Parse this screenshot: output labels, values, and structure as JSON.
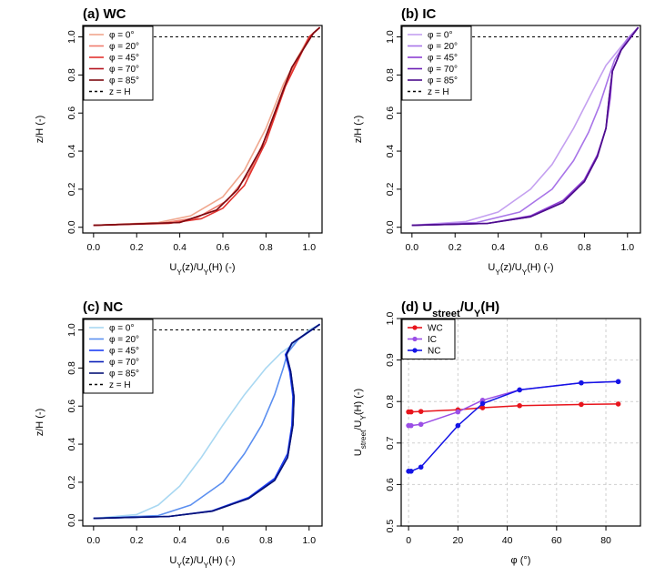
{
  "chart_data": [
    {
      "id": "a",
      "type": "line",
      "title": "(a) WC",
      "xlabel": "U_Y(z)/U_Y(H) (-)",
      "ylabel": "z/H (-)",
      "xlim": [
        -0.05,
        1.06
      ],
      "ylim": [
        -0.03,
        1.06
      ],
      "xticks": [
        "0.0",
        "0.2",
        "0.4",
        "0.6",
        "0.8",
        "1.0"
      ],
      "yticks": [
        "0.0",
        "0.2",
        "0.4",
        "0.6",
        "0.8",
        "1.0"
      ],
      "reference_line": {
        "label": "z = H",
        "y": 1.0
      },
      "legend_position": "top-left",
      "series": [
        {
          "name": "φ = 0°",
          "color": "#f0a78e",
          "points": [
            [
              0,
              0.01
            ],
            [
              0.3,
              0.025
            ],
            [
              0.45,
              0.06
            ],
            [
              0.6,
              0.16
            ],
            [
              0.7,
              0.3
            ],
            [
              0.8,
              0.52
            ],
            [
              0.88,
              0.75
            ],
            [
              0.94,
              0.88
            ],
            [
              1.0,
              1.0
            ],
            [
              1.05,
              1.05
            ]
          ]
        },
        {
          "name": "φ = 20°",
          "color": "#ef7b6d",
          "points": [
            [
              0,
              0.01
            ],
            [
              0.32,
              0.022
            ],
            [
              0.48,
              0.05
            ],
            [
              0.62,
              0.14
            ],
            [
              0.72,
              0.28
            ],
            [
              0.81,
              0.5
            ],
            [
              0.885,
              0.74
            ],
            [
              0.945,
              0.88
            ],
            [
              1.0,
              1.0
            ],
            [
              1.05,
              1.05
            ]
          ]
        },
        {
          "name": "φ = 45°",
          "color": "#e3332f",
          "points": [
            [
              0,
              0.01
            ],
            [
              0.35,
              0.02
            ],
            [
              0.5,
              0.045
            ],
            [
              0.6,
              0.1
            ],
            [
              0.7,
              0.22
            ],
            [
              0.8,
              0.45
            ],
            [
              0.89,
              0.74
            ],
            [
              0.95,
              0.88
            ],
            [
              1.0,
              1.0
            ],
            [
              1.05,
              1.05
            ]
          ]
        },
        {
          "name": "φ = 70°",
          "color": "#b4151f",
          "points": [
            [
              0,
              0.01
            ],
            [
              0.4,
              0.025
            ],
            [
              0.57,
              0.09
            ],
            [
              0.67,
              0.2
            ],
            [
              0.78,
              0.42
            ],
            [
              0.86,
              0.66
            ],
            [
              0.92,
              0.84
            ],
            [
              0.97,
              0.93
            ],
            [
              1.02,
              1.02
            ],
            [
              1.05,
              1.05
            ]
          ]
        },
        {
          "name": "φ = 85°",
          "color": "#7d0b12",
          "points": [
            [
              0,
              0.01
            ],
            [
              0.4,
              0.025
            ],
            [
              0.57,
              0.09
            ],
            [
              0.67,
              0.2
            ],
            [
              0.78,
              0.42
            ],
            [
              0.86,
              0.66
            ],
            [
              0.92,
              0.84
            ],
            [
              0.97,
              0.93
            ],
            [
              1.02,
              1.02
            ],
            [
              1.05,
              1.05
            ]
          ]
        }
      ]
    },
    {
      "id": "b",
      "type": "line",
      "title": "(b) IC",
      "xlabel": "U_Y(z)/U_Y(H) (-)",
      "ylabel": "z/H (-)",
      "xlim": [
        -0.05,
        1.06
      ],
      "ylim": [
        -0.03,
        1.06
      ],
      "xticks": [
        "0.0",
        "0.2",
        "0.4",
        "0.6",
        "0.8",
        "1.0"
      ],
      "yticks": [
        "0.0",
        "0.2",
        "0.4",
        "0.6",
        "0.8",
        "1.0"
      ],
      "reference_line": {
        "label": "z = H",
        "y": 1.0
      },
      "legend_position": "top-left",
      "series": [
        {
          "name": "φ = 0°",
          "color": "#c4a0f0",
          "points": [
            [
              0,
              0.01
            ],
            [
              0.25,
              0.03
            ],
            [
              0.4,
              0.08
            ],
            [
              0.55,
              0.2
            ],
            [
              0.65,
              0.33
            ],
            [
              0.75,
              0.52
            ],
            [
              0.84,
              0.72
            ],
            [
              0.9,
              0.85
            ],
            [
              0.95,
              0.92
            ],
            [
              1.0,
              0.99
            ],
            [
              1.05,
              1.05
            ]
          ]
        },
        {
          "name": "φ = 20°",
          "color": "#a874e8",
          "points": [
            [
              0,
              0.01
            ],
            [
              0.3,
              0.025
            ],
            [
              0.5,
              0.08
            ],
            [
              0.65,
              0.2
            ],
            [
              0.75,
              0.35
            ],
            [
              0.82,
              0.5
            ],
            [
              0.87,
              0.64
            ],
            [
              0.91,
              0.78
            ],
            [
              0.94,
              0.88
            ],
            [
              1.0,
              0.99
            ],
            [
              1.05,
              1.05
            ]
          ]
        },
        {
          "name": "φ = 45°",
          "color": "#8e3fd4",
          "points": [
            [
              0,
              0.01
            ],
            [
              0.35,
              0.02
            ],
            [
              0.55,
              0.06
            ],
            [
              0.7,
              0.14
            ],
            [
              0.8,
              0.25
            ],
            [
              0.86,
              0.38
            ],
            [
              0.9,
              0.52
            ],
            [
              0.92,
              0.68
            ],
            [
              0.93,
              0.82
            ],
            [
              0.97,
              0.93
            ],
            [
              1.05,
              1.05
            ]
          ]
        },
        {
          "name": "φ = 70°",
          "color": "#6c1fb5",
          "points": [
            [
              0,
              0.01
            ],
            [
              0.35,
              0.02
            ],
            [
              0.55,
              0.055
            ],
            [
              0.7,
              0.13
            ],
            [
              0.8,
              0.24
            ],
            [
              0.86,
              0.37
            ],
            [
              0.9,
              0.52
            ],
            [
              0.915,
              0.68
            ],
            [
              0.93,
              0.82
            ],
            [
              0.97,
              0.93
            ],
            [
              1.05,
              1.05
            ]
          ]
        },
        {
          "name": "φ = 85°",
          "color": "#4d0d8c",
          "points": [
            [
              0,
              0.01
            ],
            [
              0.35,
              0.02
            ],
            [
              0.55,
              0.055
            ],
            [
              0.7,
              0.13
            ],
            [
              0.8,
              0.24
            ],
            [
              0.86,
              0.37
            ],
            [
              0.9,
              0.52
            ],
            [
              0.915,
              0.68
            ],
            [
              0.93,
              0.82
            ],
            [
              0.97,
              0.93
            ],
            [
              1.05,
              1.05
            ]
          ]
        }
      ]
    },
    {
      "id": "c",
      "type": "line",
      "title": "(c) NC",
      "xlabel": "U_Y(z)/U_Y(H) (-)",
      "ylabel": "z/H (-)",
      "xlim": [
        -0.05,
        1.06
      ],
      "ylim": [
        -0.03,
        1.06
      ],
      "xticks": [
        "0.0",
        "0.2",
        "0.4",
        "0.6",
        "0.8",
        "1.0"
      ],
      "yticks": [
        "0.0",
        "0.2",
        "0.4",
        "0.6",
        "0.8",
        "1.0"
      ],
      "reference_line": {
        "label": "z = H",
        "y": 1.0
      },
      "legend_position": "top-left",
      "series": [
        {
          "name": "φ = 0°",
          "color": "#a9d8f2",
          "points": [
            [
              0,
              0.01
            ],
            [
              0.2,
              0.03
            ],
            [
              0.3,
              0.08
            ],
            [
              0.4,
              0.18
            ],
            [
              0.5,
              0.33
            ],
            [
              0.6,
              0.5
            ],
            [
              0.7,
              0.66
            ],
            [
              0.8,
              0.8
            ],
            [
              0.87,
              0.88
            ],
            [
              0.92,
              0.92
            ],
            [
              1.0,
              1.0
            ],
            [
              1.05,
              1.03
            ]
          ]
        },
        {
          "name": "φ = 20°",
          "color": "#5b8ff0",
          "points": [
            [
              0,
              0.01
            ],
            [
              0.3,
              0.025
            ],
            [
              0.45,
              0.08
            ],
            [
              0.6,
              0.2
            ],
            [
              0.7,
              0.35
            ],
            [
              0.78,
              0.5
            ],
            [
              0.84,
              0.66
            ],
            [
              0.88,
              0.8
            ],
            [
              0.9,
              0.88
            ],
            [
              0.95,
              0.95
            ],
            [
              1.05,
              1.03
            ]
          ]
        },
        {
          "name": "φ = 45°",
          "color": "#1c3ef5",
          "points": [
            [
              0,
              0.01
            ],
            [
              0.35,
              0.02
            ],
            [
              0.55,
              0.05
            ],
            [
              0.72,
              0.12
            ],
            [
              0.84,
              0.22
            ],
            [
              0.9,
              0.35
            ],
            [
              0.92,
              0.5
            ],
            [
              0.925,
              0.65
            ],
            [
              0.91,
              0.78
            ],
            [
              0.89,
              0.87
            ],
            [
              0.92,
              0.93
            ],
            [
              1.05,
              1.03
            ]
          ]
        },
        {
          "name": "φ = 70°",
          "color": "#0a1fb8",
          "points": [
            [
              0,
              0.01
            ],
            [
              0.35,
              0.02
            ],
            [
              0.55,
              0.048
            ],
            [
              0.72,
              0.115
            ],
            [
              0.84,
              0.21
            ],
            [
              0.9,
              0.33
            ],
            [
              0.925,
              0.5
            ],
            [
              0.93,
              0.65
            ],
            [
              0.915,
              0.78
            ],
            [
              0.895,
              0.87
            ],
            [
              0.92,
              0.93
            ],
            [
              1.05,
              1.03
            ]
          ]
        },
        {
          "name": "φ = 85°",
          "color": "#071277",
          "points": [
            [
              0,
              0.01
            ],
            [
              0.35,
              0.02
            ],
            [
              0.55,
              0.048
            ],
            [
              0.72,
              0.115
            ],
            [
              0.84,
              0.21
            ],
            [
              0.9,
              0.33
            ],
            [
              0.925,
              0.5
            ],
            [
              0.93,
              0.65
            ],
            [
              0.915,
              0.78
            ],
            [
              0.895,
              0.87
            ],
            [
              0.92,
              0.93
            ],
            [
              1.05,
              1.03
            ]
          ]
        }
      ]
    },
    {
      "id": "d",
      "type": "line",
      "title": "(d) U_street/U_Y(H)",
      "xlabel": "φ (°)",
      "ylabel": "U_street/U_Y(H) (-)",
      "xlim": [
        -3,
        94
      ],
      "ylim": [
        0.5,
        1.0
      ],
      "xticks": [
        "0",
        "20",
        "40",
        "60",
        "80"
      ],
      "yticks": [
        "0.5",
        "0.6",
        "0.7",
        "0.8",
        "0.9",
        "1.0"
      ],
      "grid": true,
      "legend_position": "top-left",
      "categories": [
        0,
        1,
        5,
        20,
        30,
        45,
        70,
        85
      ],
      "series": [
        {
          "name": "WC",
          "color": "#e8141c",
          "values": [
            0.775,
            0.775,
            0.776,
            0.78,
            0.785,
            0.79,
            0.793,
            0.794
          ]
        },
        {
          "name": "IC",
          "color": "#9b4ee6",
          "values": [
            0.742,
            0.742,
            0.745,
            0.775,
            0.803,
            0.828,
            0.845,
            0.848
          ]
        },
        {
          "name": "NC",
          "color": "#1414e6",
          "values": [
            0.632,
            0.632,
            0.642,
            0.742,
            0.795,
            0.828,
            0.845,
            0.848
          ]
        }
      ]
    }
  ]
}
